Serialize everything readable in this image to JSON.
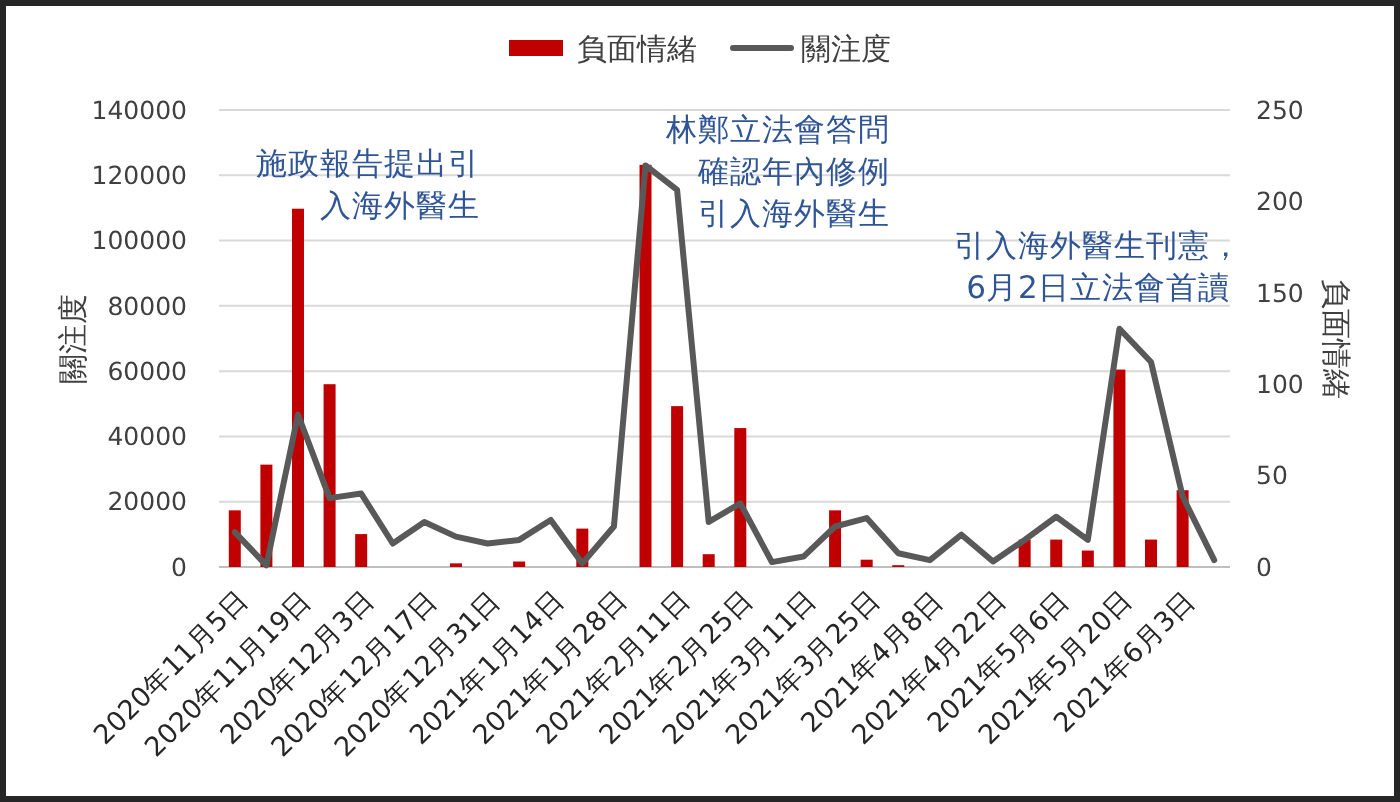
{
  "chart_data": {
    "type": "bar",
    "categories": [
      "2020年11月5日",
      null,
      "2020年11月19日",
      null,
      "2020年12月3日",
      null,
      "2020年12月17日",
      null,
      "2020年12月31日",
      null,
      "2021年1月14日",
      null,
      "2021年1月28日",
      null,
      "2021年2月11日",
      null,
      "2021年2月25日",
      null,
      "2021年3月11日",
      null,
      "2021年3月25日",
      null,
      "2021年4月8日",
      null,
      "2021年4月22日",
      null,
      "2021年5月6日",
      null,
      "2021年5月20日",
      null,
      "2021年6月3日",
      null
    ],
    "series": [
      {
        "name": "負面情緒",
        "axis": "y2",
        "color": "#c00000",
        "values": [
          31,
          56,
          196,
          100,
          18,
          0,
          0,
          2,
          0,
          3,
          0,
          21,
          0,
          220,
          88,
          7,
          76,
          0,
          0,
          31,
          4,
          1,
          0,
          0,
          0,
          15,
          15,
          9,
          108,
          15,
          42,
          0
        ]
      },
      {
        "name": "關注度",
        "type": "line",
        "color": "#595959",
        "values": [
          10700,
          500,
          46700,
          21100,
          22500,
          7200,
          13800,
          9300,
          7200,
          8300,
          14400,
          1100,
          12400,
          123000,
          115500,
          13800,
          19500,
          1500,
          3200,
          12400,
          15000,
          4200,
          2100,
          9900,
          1700,
          8300,
          15400,
          8300,
          73000,
          62800,
          21600,
          2100
        ]
      }
    ],
    "ylabel": "關注度",
    "y2label": "負面情緒",
    "ylim": [
      0,
      140000
    ],
    "yticks": [
      0,
      20000,
      40000,
      60000,
      80000,
      100000,
      120000,
      140000
    ],
    "y2lim": [
      0,
      250
    ],
    "y2ticks": [
      0,
      50,
      100,
      150,
      200,
      250
    ],
    "annotations": [
      "施政報告提出引入海外醫生",
      "林鄭立法會答問確認年內修例引入海外醫生",
      "引入海外醫生刊憲，6月2日立法會首讀"
    ],
    "grid": "y",
    "legend": "top",
    "marker": "none",
    "line_style": "solid"
  }
}
